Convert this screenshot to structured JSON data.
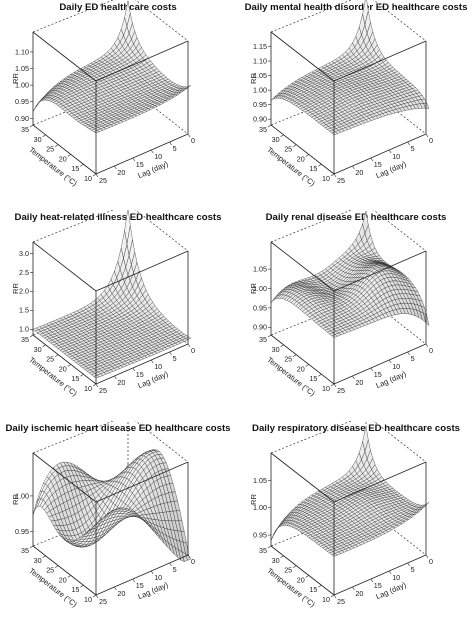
{
  "chart_data": [
    {
      "type": "surface3d",
      "title": "Daily ED healthcare costs",
      "zlabel": "RR",
      "xlabel": "Temperature (°C)",
      "ylabel": "Lag (day)",
      "x_ticks": [
        "35",
        "30",
        "25",
        "20",
        "15",
        "10"
      ],
      "y_ticks": [
        "0",
        "5",
        "10",
        "15",
        "20",
        "25"
      ],
      "z_ticks": [
        "0.90",
        "0.95",
        "1.00",
        "1.05",
        "1.10"
      ],
      "zlim": [
        0.88,
        1.16
      ],
      "surface": "peak near 35°C at lag 0 (~1.15), minimum near 35°C at lag 25, nearly flat about 1.00 elsewhere with slight rise near 10°C short lags"
    },
    {
      "type": "surface3d",
      "title": "Daily mental health disorder ED healthcare costs",
      "zlabel": "RR",
      "xlabel": "Temperature (°C)",
      "ylabel": "Lag (day)",
      "x_ticks": [
        "35",
        "30",
        "25",
        "20",
        "15",
        "10"
      ],
      "y_ticks": [
        "0",
        "5",
        "10",
        "15",
        "20",
        "25"
      ],
      "z_ticks": [
        "0.90",
        "0.95",
        "1.00",
        "1.05",
        "1.10",
        "1.15"
      ],
      "zlim": [
        0.88,
        1.2
      ],
      "surface": "peak near 35°C at lag 0 (~1.20), broad ridge about 1.02 across mid lags, dip near 10°C lag 0"
    },
    {
      "type": "surface3d",
      "title": "Daily heat-related illness ED healthcare costs",
      "zlabel": "RR",
      "xlabel": "Temperature (°C)",
      "ylabel": "Lag (day)",
      "x_ticks": [
        "35",
        "30",
        "25",
        "20",
        "15",
        "10"
      ],
      "y_ticks": [
        "0",
        "5",
        "10",
        "15",
        "20",
        "25"
      ],
      "z_ticks": [
        "1.0",
        "1.5",
        "2.0",
        "2.5",
        "3.0"
      ],
      "zlim": [
        0.85,
        3.3
      ],
      "surface": "steep exponential peak near 35°C at lag 0 (~3.2), decaying rapidly with lag and lower temperature to about 1.0"
    },
    {
      "type": "surface3d",
      "title": "Daily renal disease ED healthcare costs",
      "zlabel": "RR",
      "xlabel": "Temperature (°C)",
      "ylabel": "Lag (day)",
      "x_ticks": [
        "35",
        "30",
        "25",
        "20",
        "15",
        "10"
      ],
      "y_ticks": [
        "0",
        "5",
        "10",
        "15",
        "20",
        "25"
      ],
      "z_ticks": [
        "0.90",
        "0.95",
        "1.00",
        "1.05"
      ],
      "zlim": [
        0.88,
        1.12
      ],
      "surface": "peak near 35°C at lag 0 (~1.10), wavy hump near 20°C mid lags (~1.06), dip near 10°C lag 0"
    },
    {
      "type": "surface3d",
      "title": "Daily ischemic heart disease ED healthcare costs",
      "zlabel": "RR",
      "xlabel": "Temperature (°C)",
      "ylabel": "Lag (day)",
      "x_ticks": [
        "35",
        "30",
        "25",
        "20",
        "15",
        "10"
      ],
      "y_ticks": [
        "0",
        "5",
        "10",
        "15",
        "20",
        "25"
      ],
      "z_ticks": [
        "0.95",
        "1.00"
      ],
      "zlim": [
        0.93,
        1.06
      ],
      "surface": "strongly wavy saddle surface: high ridges near 30°C early lags and 10°C late lags, deep troughs at 35°C lag 25 and 10°C lag 0"
    },
    {
      "type": "surface3d",
      "title": "Daily respiratory disease ED healthcare costs",
      "zlabel": "RR",
      "xlabel": "Temperature (°C)",
      "ylabel": "Lag (day)",
      "x_ticks": [
        "35",
        "30",
        "25",
        "20",
        "15",
        "10"
      ],
      "y_ticks": [
        "0",
        "5",
        "10",
        "15",
        "20",
        "25"
      ],
      "z_ticks": [
        "0.95",
        "1.00",
        "1.05"
      ],
      "zlim": [
        0.93,
        1.1
      ],
      "surface": "peak near 35°C at lag 0 (~1.08), gentle rise toward 10°C short lags, flat about 1.00 elsewhere"
    }
  ]
}
